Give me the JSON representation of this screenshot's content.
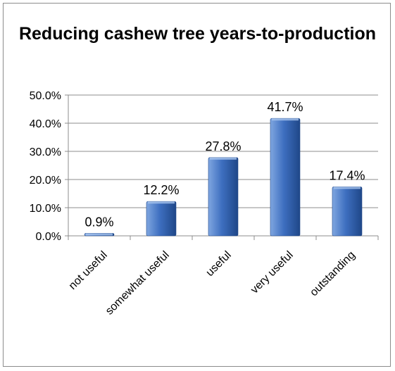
{
  "chart_data": {
    "type": "bar",
    "title": "Reducing cashew tree years-to-production",
    "categories": [
      "not useful",
      "somewhat useful",
      "useful",
      "very useful",
      "outstanding"
    ],
    "values": [
      0.9,
      12.2,
      27.8,
      41.7,
      17.4
    ],
    "value_labels": [
      "0.9%",
      "12.2%",
      "27.8%",
      "41.7%",
      "17.4%"
    ],
    "y_ticks": [
      "0.0%",
      "10.0%",
      "20.0%",
      "30.0%",
      "40.0%",
      "50.0%"
    ],
    "ylim": [
      0,
      50
    ],
    "ytick_step": 10,
    "grid": true,
    "legend": "none",
    "colors": {
      "bar_light": "#7fa6e0",
      "bar_mid": "#3e6fc0",
      "bar_dark": "#1f4788",
      "grid": "#8c8c8c"
    }
  }
}
